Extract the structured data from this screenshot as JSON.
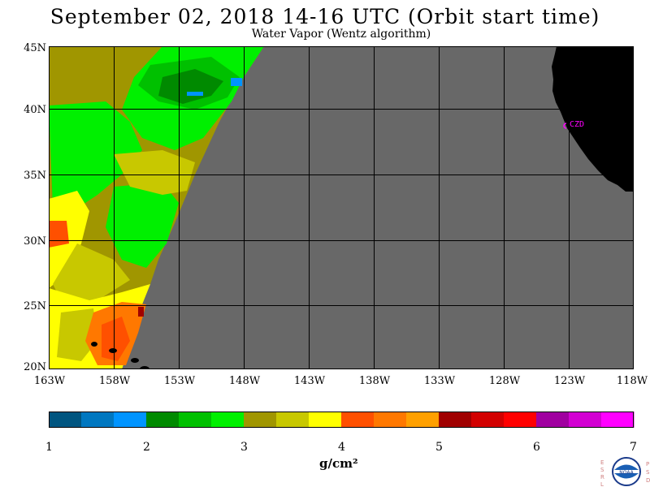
{
  "header": {
    "title": "September 02, 2018  14-16 UTC  (Orbit start time)",
    "subtitle": "Water Vapor (Wentz algorithm)"
  },
  "map": {
    "lat_labels": [
      "45N",
      "40N",
      "35N",
      "30N",
      "25N",
      "20N"
    ],
    "lon_labels": [
      "163W",
      "158W",
      "153W",
      "148W",
      "143W",
      "138W",
      "133W",
      "128W",
      "123W",
      "118W"
    ],
    "station_label": "CZD",
    "colors": {
      "no_data": "#686868",
      "land": "#000000",
      "station": "#ff00ff",
      "grid": "#000000"
    }
  },
  "colorbar": {
    "colors": [
      "#005580",
      "#0077c0",
      "#0094ff",
      "#008a00",
      "#00c000",
      "#00f000",
      "#a09600",
      "#c8c800",
      "#ffff00",
      "#ff5000",
      "#ff7800",
      "#ffa000",
      "#a00000",
      "#d20000",
      "#ff0000",
      "#a000a0",
      "#d200d2",
      "#ff00ff"
    ],
    "tick_labels": [
      "1",
      "2",
      "3",
      "4",
      "5",
      "6",
      "7"
    ],
    "unit": "g/cm²"
  },
  "logo": {
    "left_letters": "ESRL",
    "right_letters": "PSD",
    "text": "NOAA"
  }
}
